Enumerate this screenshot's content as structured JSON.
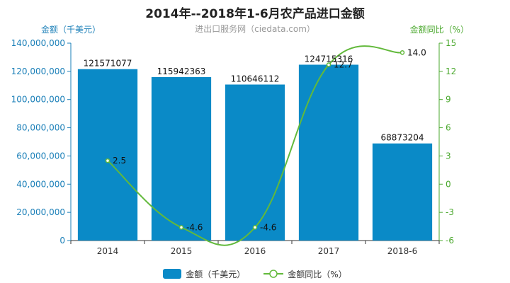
{
  "chart_data": {
    "type": "bar",
    "title": "2014年--2018年1-6月农产品进口金额",
    "subtitle": "进出口服务网（ciedata.com）",
    "categories": [
      "2014",
      "2015",
      "2016",
      "2017",
      "2018-6"
    ],
    "series": [
      {
        "name": "金额（千美元）",
        "type": "bar",
        "axis": "left",
        "values": [
          121571077,
          115942363,
          110646112,
          124715316,
          68873204
        ]
      },
      {
        "name": "金额同比（%）",
        "type": "line",
        "axis": "right",
        "values": [
          2.5,
          -4.6,
          -4.6,
          12.7,
          14.0
        ]
      }
    ],
    "ylabel_left": "金额（千美元）",
    "ylabel_right": "金额同比（%）",
    "ylim_left": [
      0,
      140000000
    ],
    "ylim_right": [
      -6,
      15
    ],
    "yticks_left": [
      "0",
      "20,000,000",
      "40,000,000",
      "60,000,000",
      "80,000,000",
      "100,000,000",
      "120,000,000",
      "140,000,000"
    ],
    "yticks_right": [
      "-6",
      "-3",
      "0",
      "3",
      "6",
      "9",
      "12",
      "15"
    ],
    "bar_labels": [
      "121571077",
      "115942363",
      "110646112",
      "124715316",
      "68873204"
    ],
    "line_labels": [
      "2.5",
      "-4.6",
      "-4.6",
      "12.7",
      "14.0"
    ],
    "legend": [
      "金额（千美元）",
      "金额同比（%）"
    ],
    "legend_position": "bottom",
    "grid": false,
    "colors": {
      "bar": "#0a8ac7",
      "line": "#62b93b",
      "left_axis": "#1a7fb8",
      "right_axis": "#4aa82d"
    }
  }
}
